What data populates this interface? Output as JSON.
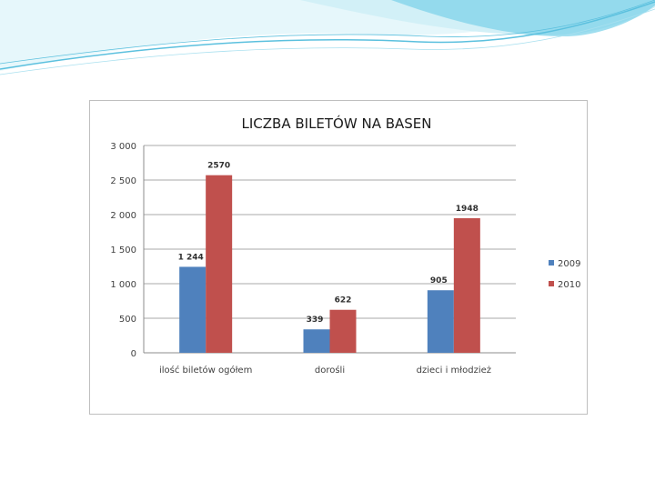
{
  "chart_data": {
    "type": "bar",
    "title": "LICZBA BILETÓW NA BASEN",
    "xlabel": "",
    "ylabel": "",
    "categories": [
      "ilość biletów ogółem",
      "dorośli",
      "dzieci i młodzież"
    ],
    "series": [
      {
        "name": "2009",
        "color": "#4f81bd",
        "values": [
          1244,
          339,
          905
        ],
        "labels": [
          "1 244",
          "339",
          "905"
        ]
      },
      {
        "name": "2010",
        "color": "#c0504d",
        "values": [
          2570,
          622,
          1948
        ],
        "labels": [
          "2570",
          "622",
          "1948"
        ]
      }
    ],
    "ylim": [
      0,
      3000
    ],
    "yticks": [
      0,
      500,
      1000,
      1500,
      2000,
      2500,
      3000
    ],
    "ytick_labels": [
      "0",
      "500",
      "1 000",
      "1 500",
      "2 000",
      "2 500",
      "3 000"
    ],
    "grid": true,
    "legend_position": "right"
  },
  "colors": {
    "gridline": "#8c8c8c",
    "axis": "#8c8c8c",
    "decoration": "#5bc0de"
  }
}
